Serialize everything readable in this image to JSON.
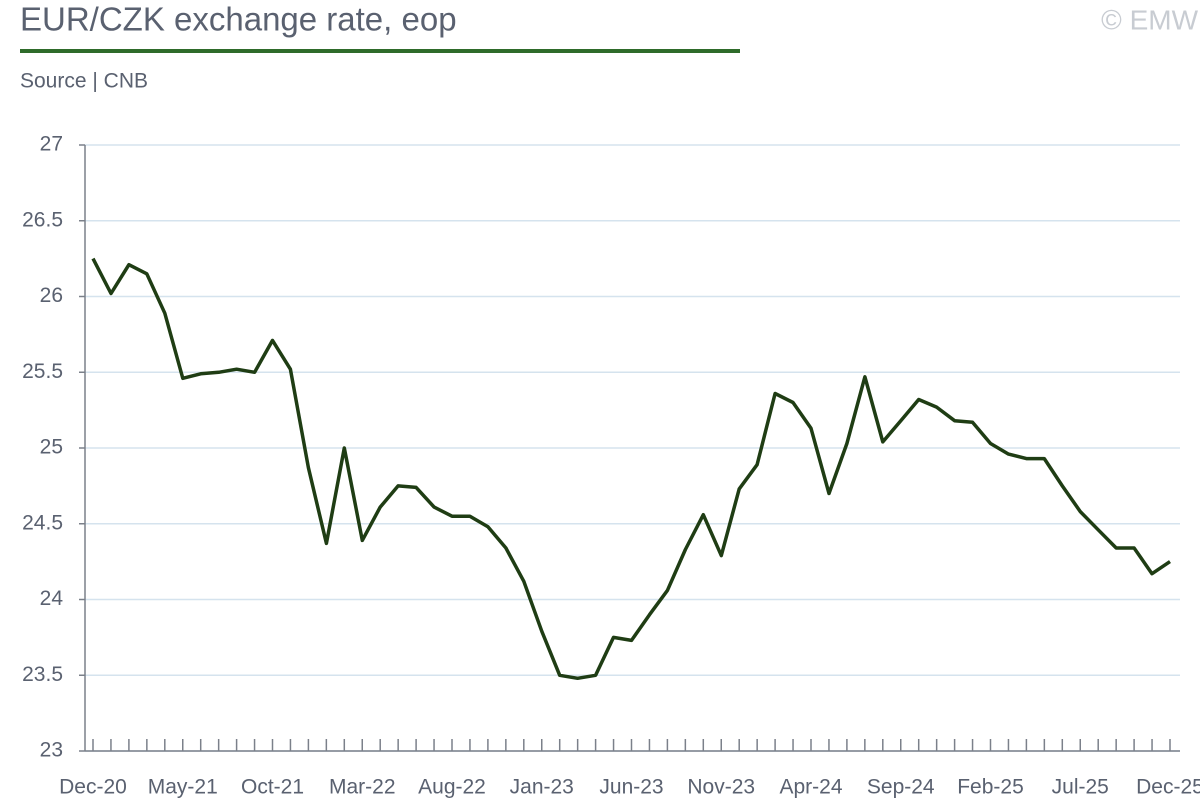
{
  "chart_data": {
    "type": "line",
    "title": "EUR/CZK exchange rate, eop",
    "subtitle": "Source | CNB",
    "copyright": "© EMW",
    "categories": [
      "Dec-20",
      null,
      null,
      null,
      null,
      "May-21",
      null,
      null,
      null,
      null,
      "Oct-21",
      null,
      null,
      null,
      null,
      "Mar-22",
      null,
      null,
      null,
      null,
      "Aug-22",
      null,
      null,
      null,
      null,
      "Jan-23",
      null,
      null,
      null,
      null,
      "Jun-23",
      null,
      null,
      null,
      null,
      "Nov-23",
      null,
      null,
      null,
      null,
      "Apr-24",
      null,
      null,
      null,
      null,
      "Sep-24",
      null,
      null,
      null,
      null,
      "Feb-25",
      null,
      null,
      null,
      null,
      "Jul-25",
      null,
      null,
      null,
      null,
      "Dec-25"
    ],
    "series": [
      {
        "color": "#1f3d14",
        "values": [
          26.25,
          26.02,
          26.21,
          26.15,
          25.89,
          25.46,
          25.49,
          25.5,
          25.52,
          25.5,
          25.71,
          25.52,
          24.87,
          24.37,
          25.0,
          24.39,
          24.61,
          24.75,
          24.74,
          24.61,
          24.55,
          24.55,
          24.48,
          24.34,
          24.12,
          23.79,
          23.5,
          23.48,
          23.5,
          23.75,
          23.73,
          23.9,
          24.06,
          24.33,
          24.56,
          24.29,
          24.73,
          24.89,
          25.36,
          25.3,
          25.13,
          24.7,
          25.03,
          25.47,
          25.04,
          25.18,
          25.32,
          25.27,
          25.18,
          25.17,
          25.03,
          24.96,
          24.93,
          24.93,
          24.75,
          24.58,
          24.46,
          24.34,
          24.34,
          24.17,
          24.25
        ]
      }
    ],
    "ylim": [
      23,
      27
    ],
    "yticks": [
      23,
      23.5,
      24,
      24.5,
      25,
      25.5,
      26,
      26.5,
      27
    ],
    "grid": true
  }
}
